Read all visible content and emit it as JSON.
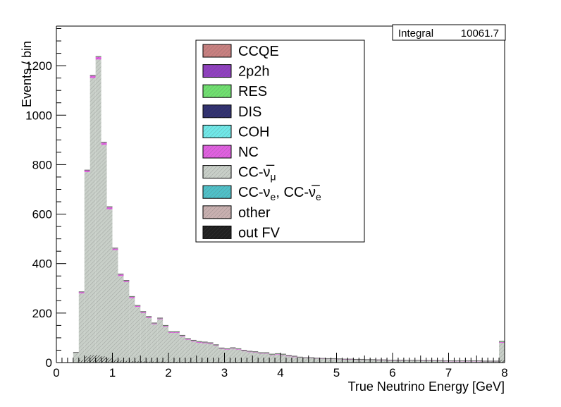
{
  "chart_data": {
    "type": "bar",
    "title": "",
    "xlabel": "True Neutrino Energy [GeV]",
    "ylabel": "Events / bin",
    "xlim": [
      0,
      8
    ],
    "ylim": [
      0,
      1360
    ],
    "x_ticks": [
      "0",
      "1",
      "2",
      "3",
      "4",
      "5",
      "6",
      "7",
      "8"
    ],
    "y_ticks": [
      "0",
      "200",
      "400",
      "600",
      "800",
      "1000",
      "1200"
    ],
    "y_tick_values": [
      0,
      200,
      400,
      600,
      800,
      1000,
      1200
    ],
    "bin_width": 0.1,
    "bin_edges_start": 0.0,
    "stats": {
      "label": "Integral",
      "value": "10061.7"
    },
    "legend_position": "top-center",
    "legend": [
      {
        "label": "CCQE",
        "sub": "",
        "color": "#c88080"
      },
      {
        "label": "2p2h",
        "sub": "",
        "color": "#9040c0"
      },
      {
        "label": "RES",
        "sub": "",
        "color": "#70e070"
      },
      {
        "label": "DIS",
        "sub": "",
        "color": "#303070"
      },
      {
        "label": "COH",
        "sub": "",
        "color": "#70e8e8"
      },
      {
        "label": "NC",
        "sub": "",
        "color": "#e060e0"
      },
      {
        "label": "CC-ν̅",
        "sub": "μ",
        "color": "#c8cfc8"
      },
      {
        "label": "CC-ν",
        "sub": "e",
        "label2": ", CC-ν̅",
        "sub2": "e",
        "color": "#50c0c8"
      },
      {
        "label": "other",
        "sub": "",
        "color": "#c8b0b0"
      },
      {
        "label": "out FV",
        "sub": "",
        "color": "#202020"
      }
    ],
    "series": [
      {
        "name": "CC-ν̅μ",
        "color": "#c8cfc8",
        "values": [
          0,
          0,
          0,
          40,
          280,
          770,
          1150,
          1225,
          880,
          620,
          455,
          350,
          325,
          260,
          225,
          200,
          180,
          155,
          175,
          145,
          120,
          120,
          105,
          92,
          85,
          80,
          78,
          75,
          68,
          55,
          52,
          56,
          52,
          46,
          42,
          40,
          36,
          36,
          30,
          32,
          30,
          25,
          22,
          20,
          18,
          18,
          16,
          15,
          14,
          14,
          13,
          12,
          12,
          11,
          11,
          10,
          10,
          9,
          9,
          8,
          8,
          8,
          7,
          7,
          7,
          6,
          6,
          6,
          6,
          5,
          5,
          5,
          5,
          5,
          5,
          5,
          4,
          4,
          4,
          80
        ]
      },
      {
        "name": "NC",
        "color": "#e060e0",
        "values": [
          0,
          0,
          0,
          1,
          5,
          7,
          9,
          10,
          9,
          8,
          6,
          6,
          5,
          5,
          4,
          4,
          4,
          3,
          3,
          3,
          3,
          3,
          3,
          3,
          3,
          3,
          3,
          3,
          2,
          2,
          2,
          2,
          2,
          2,
          2,
          2,
          2,
          2,
          2,
          2,
          2,
          2,
          2,
          1,
          1,
          1,
          1,
          1,
          1,
          1,
          1,
          1,
          1,
          1,
          1,
          1,
          1,
          1,
          1,
          1,
          1,
          1,
          1,
          1,
          1,
          1,
          1,
          1,
          1,
          1,
          1,
          1,
          1,
          1,
          1,
          1,
          1,
          1,
          1,
          3
        ]
      },
      {
        "name": "RES",
        "color": "#70e070",
        "values": [
          0,
          0,
          0,
          0,
          1,
          1,
          2,
          2,
          2,
          2,
          2,
          2,
          2,
          2,
          2,
          2,
          2,
          2,
          2,
          2,
          2,
          2,
          2,
          2,
          2,
          2,
          2,
          2,
          2,
          2,
          2,
          2,
          2,
          2,
          2,
          2,
          2,
          2,
          2,
          2,
          2,
          2,
          2,
          1,
          1,
          1,
          1,
          1,
          1,
          1,
          1,
          1,
          1,
          1,
          1,
          1,
          1,
          1,
          1,
          1,
          1,
          1,
          1,
          1,
          1,
          1,
          1,
          1,
          1,
          1,
          1,
          1,
          1,
          1,
          1,
          1,
          1,
          1,
          1,
          3
        ]
      }
    ],
    "outfv_values": [
      0,
      0,
      0,
      0,
      10,
      25,
      30,
      30,
      25,
      18,
      12,
      9,
      7,
      6,
      5,
      5,
      4,
      4,
      4,
      3,
      3,
      3,
      3,
      3,
      2,
      2,
      2,
      2,
      2,
      2,
      2,
      2,
      2,
      2,
      2,
      2,
      1,
      1,
      1,
      1,
      1,
      1,
      1,
      1,
      1,
      1,
      1,
      1,
      1,
      1,
      1,
      1,
      1,
      1,
      1,
      1,
      1,
      1,
      1,
      1,
      1,
      1,
      1,
      1,
      1,
      1,
      1,
      1,
      1,
      1,
      1,
      1,
      1,
      1,
      1,
      1,
      1,
      1,
      1,
      10
    ]
  }
}
